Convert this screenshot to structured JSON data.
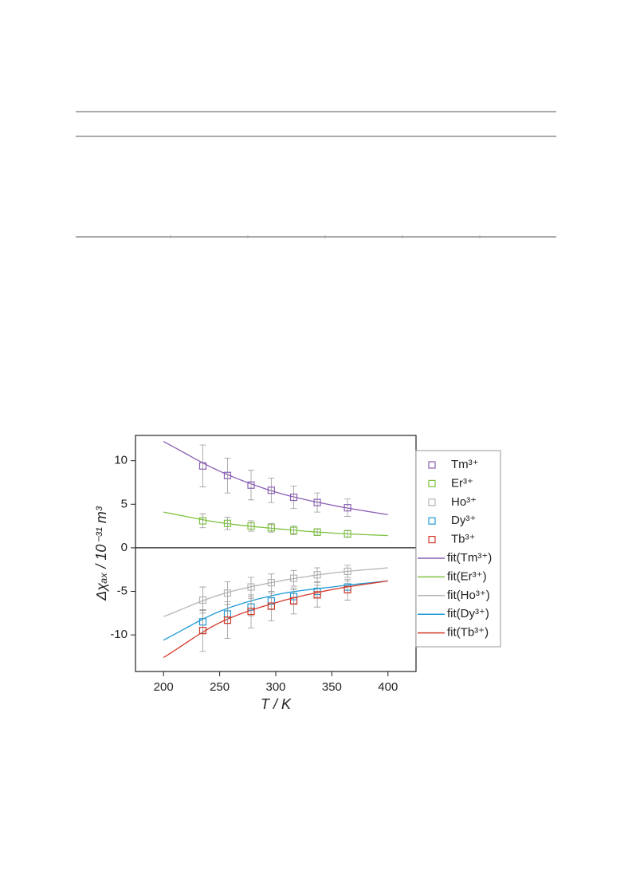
{
  "chart_data": {
    "type": "scatter",
    "xlabel": "T / K",
    "ylabel": "Δχₐₓ / 10⁻³¹ m³",
    "xlim": [
      175,
      425
    ],
    "ylim": [
      -14.2,
      12.9
    ],
    "xticks": [
      200,
      250,
      300,
      350,
      400
    ],
    "yticks": [
      -10,
      -5,
      0,
      5,
      10
    ],
    "x": [
      235,
      257,
      278,
      296,
      316,
      337,
      364
    ],
    "series": [
      {
        "name": "Tm³⁺",
        "color": "#8a5fb5",
        "values": [
          9.4,
          8.3,
          7.2,
          6.6,
          5.8,
          5.2,
          4.6
        ],
        "errors": [
          2.4,
          2.0,
          1.7,
          1.4,
          1.3,
          1.1,
          1.0
        ]
      },
      {
        "name": "Er³⁺",
        "color": "#7fc241",
        "values": [
          3.1,
          2.8,
          2.5,
          2.3,
          2.0,
          1.8,
          1.6
        ],
        "errors": [
          0.8,
          0.7,
          0.6,
          0.5,
          0.5,
          0.4,
          0.4
        ]
      },
      {
        "name": "Ho³⁺",
        "color": "#b5b5b5",
        "values": [
          -6.0,
          -5.2,
          -4.5,
          -4.0,
          -3.5,
          -3.1,
          -2.7
        ],
        "errors": [
          1.5,
          1.3,
          1.1,
          1.0,
          0.9,
          0.8,
          0.7
        ]
      },
      {
        "name": "Dy³⁺",
        "color": "#1f9ad6",
        "values": [
          -8.5,
          -7.6,
          -6.8,
          -6.1,
          -5.6,
          -5.0,
          -4.5
        ],
        "errors": [
          1.3,
          1.1,
          1.0,
          0.9,
          0.8,
          0.7,
          0.7
        ]
      },
      {
        "name": "Tb³⁺",
        "color": "#d43a2a",
        "values": [
          -9.5,
          -8.3,
          -7.3,
          -6.7,
          -6.1,
          -5.4,
          -4.8
        ],
        "errors": [
          2.4,
          2.1,
          1.9,
          1.7,
          1.5,
          1.4,
          1.2
        ]
      }
    ],
    "fits": [
      {
        "name": "fit(Tm³⁺)",
        "color": "#8a5fb5",
        "x": [
          200,
          250,
          300,
          350,
          400
        ],
        "values": [
          12.2,
          8.8,
          6.4,
          4.9,
          3.8
        ]
      },
      {
        "name": "fit(Er³⁺)",
        "color": "#7fc241",
        "x": [
          200,
          250,
          300,
          350,
          400
        ],
        "values": [
          4.1,
          2.9,
          2.2,
          1.7,
          1.4
        ]
      },
      {
        "name": "fit(Ho³⁺)",
        "color": "#b5b5b5",
        "x": [
          200,
          250,
          300,
          350,
          400
        ],
        "values": [
          -7.9,
          -5.4,
          -3.9,
          -2.9,
          -2.3
        ]
      },
      {
        "name": "fit(Dy³⁺)",
        "color": "#1f9ad6",
        "x": [
          200,
          250,
          300,
          350,
          400
        ],
        "values": [
          -10.6,
          -7.3,
          -5.4,
          -4.5,
          -3.8
        ]
      },
      {
        "name": "fit(Tb³⁺)",
        "color": "#d43a2a",
        "x": [
          200,
          250,
          300,
          350,
          400
        ],
        "values": [
          -12.6,
          -8.6,
          -6.3,
          -4.8,
          -3.8
        ]
      }
    ]
  }
}
